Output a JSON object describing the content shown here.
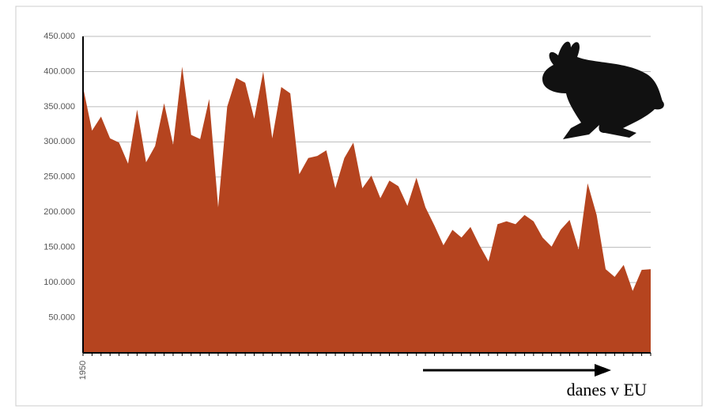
{
  "chart_data": {
    "type": "area",
    "annotation": "danes v EU",
    "color": "#b5441f",
    "grid": true,
    "x": [
      1950,
      1951,
      1952,
      1953,
      1954,
      1955,
      1956,
      1957,
      1958,
      1959,
      1960,
      1961,
      1962,
      1963,
      1964,
      1965,
      1966,
      1967,
      1968,
      1969,
      1970,
      1971,
      1972,
      1973,
      1974,
      1975,
      1976,
      1977,
      1978,
      1979,
      1980,
      1981,
      1982,
      1983,
      1984,
      1985,
      1986,
      1987,
      1988,
      1989,
      1990,
      1991,
      1992,
      1993,
      1994,
      1995,
      1996,
      1997,
      1998,
      1999,
      2000,
      2001,
      2002,
      2003,
      2004,
      2005,
      2006,
      2007,
      2008,
      2009,
      2010,
      2011,
      2012,
      2013
    ],
    "values": [
      378000,
      316000,
      336000,
      305000,
      299000,
      269000,
      346000,
      271000,
      294000,
      355000,
      296000,
      407000,
      310000,
      304000,
      361000,
      207000,
      350000,
      391000,
      384000,
      333000,
      400000,
      305000,
      378000,
      369000,
      254000,
      277000,
      280000,
      288000,
      234000,
      277000,
      299000,
      234000,
      252000,
      220000,
      245000,
      237000,
      209000,
      249000,
      207000,
      181000,
      153000,
      175000,
      164000,
      179000,
      153000,
      130000,
      183000,
      187000,
      183000,
      196000,
      187000,
      164000,
      151000,
      175000,
      189000,
      147000,
      241000,
      196000,
      119000,
      108000,
      125000,
      88000,
      118000,
      119000
    ],
    "xlim": [
      1950,
      2013
    ],
    "xticks": [
      1950
    ],
    "ylim": [
      0,
      450000
    ],
    "yticks": [
      {
        "value": 50000,
        "label": "50.000"
      },
      {
        "value": 100000,
        "label": "100.000"
      },
      {
        "value": 150000,
        "label": "150.000"
      },
      {
        "value": 200000,
        "label": "200.000"
      },
      {
        "value": 250000,
        "label": "250.000"
      },
      {
        "value": 300000,
        "label": "300.000"
      },
      {
        "value": 350000,
        "label": "350.000"
      },
      {
        "value": 400000,
        "label": "400.000"
      },
      {
        "value": 450000,
        "label": "450.000"
      }
    ]
  }
}
